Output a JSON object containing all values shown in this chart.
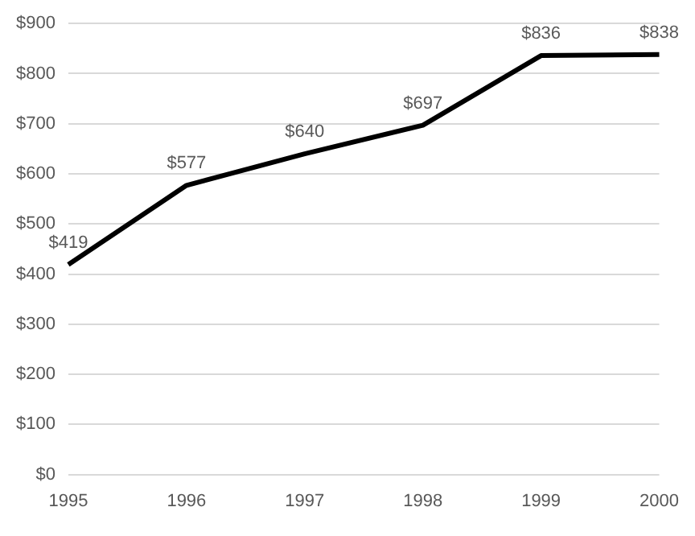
{
  "chart_data": {
    "type": "line",
    "categories": [
      "1995",
      "1996",
      "1997",
      "1998",
      "1999",
      "2000"
    ],
    "series": [
      {
        "color": "#000000",
        "values": [
          419,
          577,
          640,
          697,
          836,
          838
        ],
        "value_labels": [
          "$419",
          "$577",
          "$640",
          "$697",
          "$836",
          "$838"
        ]
      }
    ],
    "ylim": [
      0,
      900
    ],
    "yticks": [
      {
        "value": 0,
        "label": "$0"
      },
      {
        "value": 100,
        "label": "$100"
      },
      {
        "value": 200,
        "label": "$200"
      },
      {
        "value": 300,
        "label": "$300"
      },
      {
        "value": 400,
        "label": "$400"
      },
      {
        "value": 500,
        "label": "$500"
      },
      {
        "value": 600,
        "label": "$600"
      },
      {
        "value": 700,
        "label": "$700"
      },
      {
        "value": 800,
        "label": "$800"
      },
      {
        "value": 900,
        "label": "$900"
      }
    ],
    "grid": "y",
    "marker": "none",
    "line_style": "solid",
    "legend": false
  }
}
